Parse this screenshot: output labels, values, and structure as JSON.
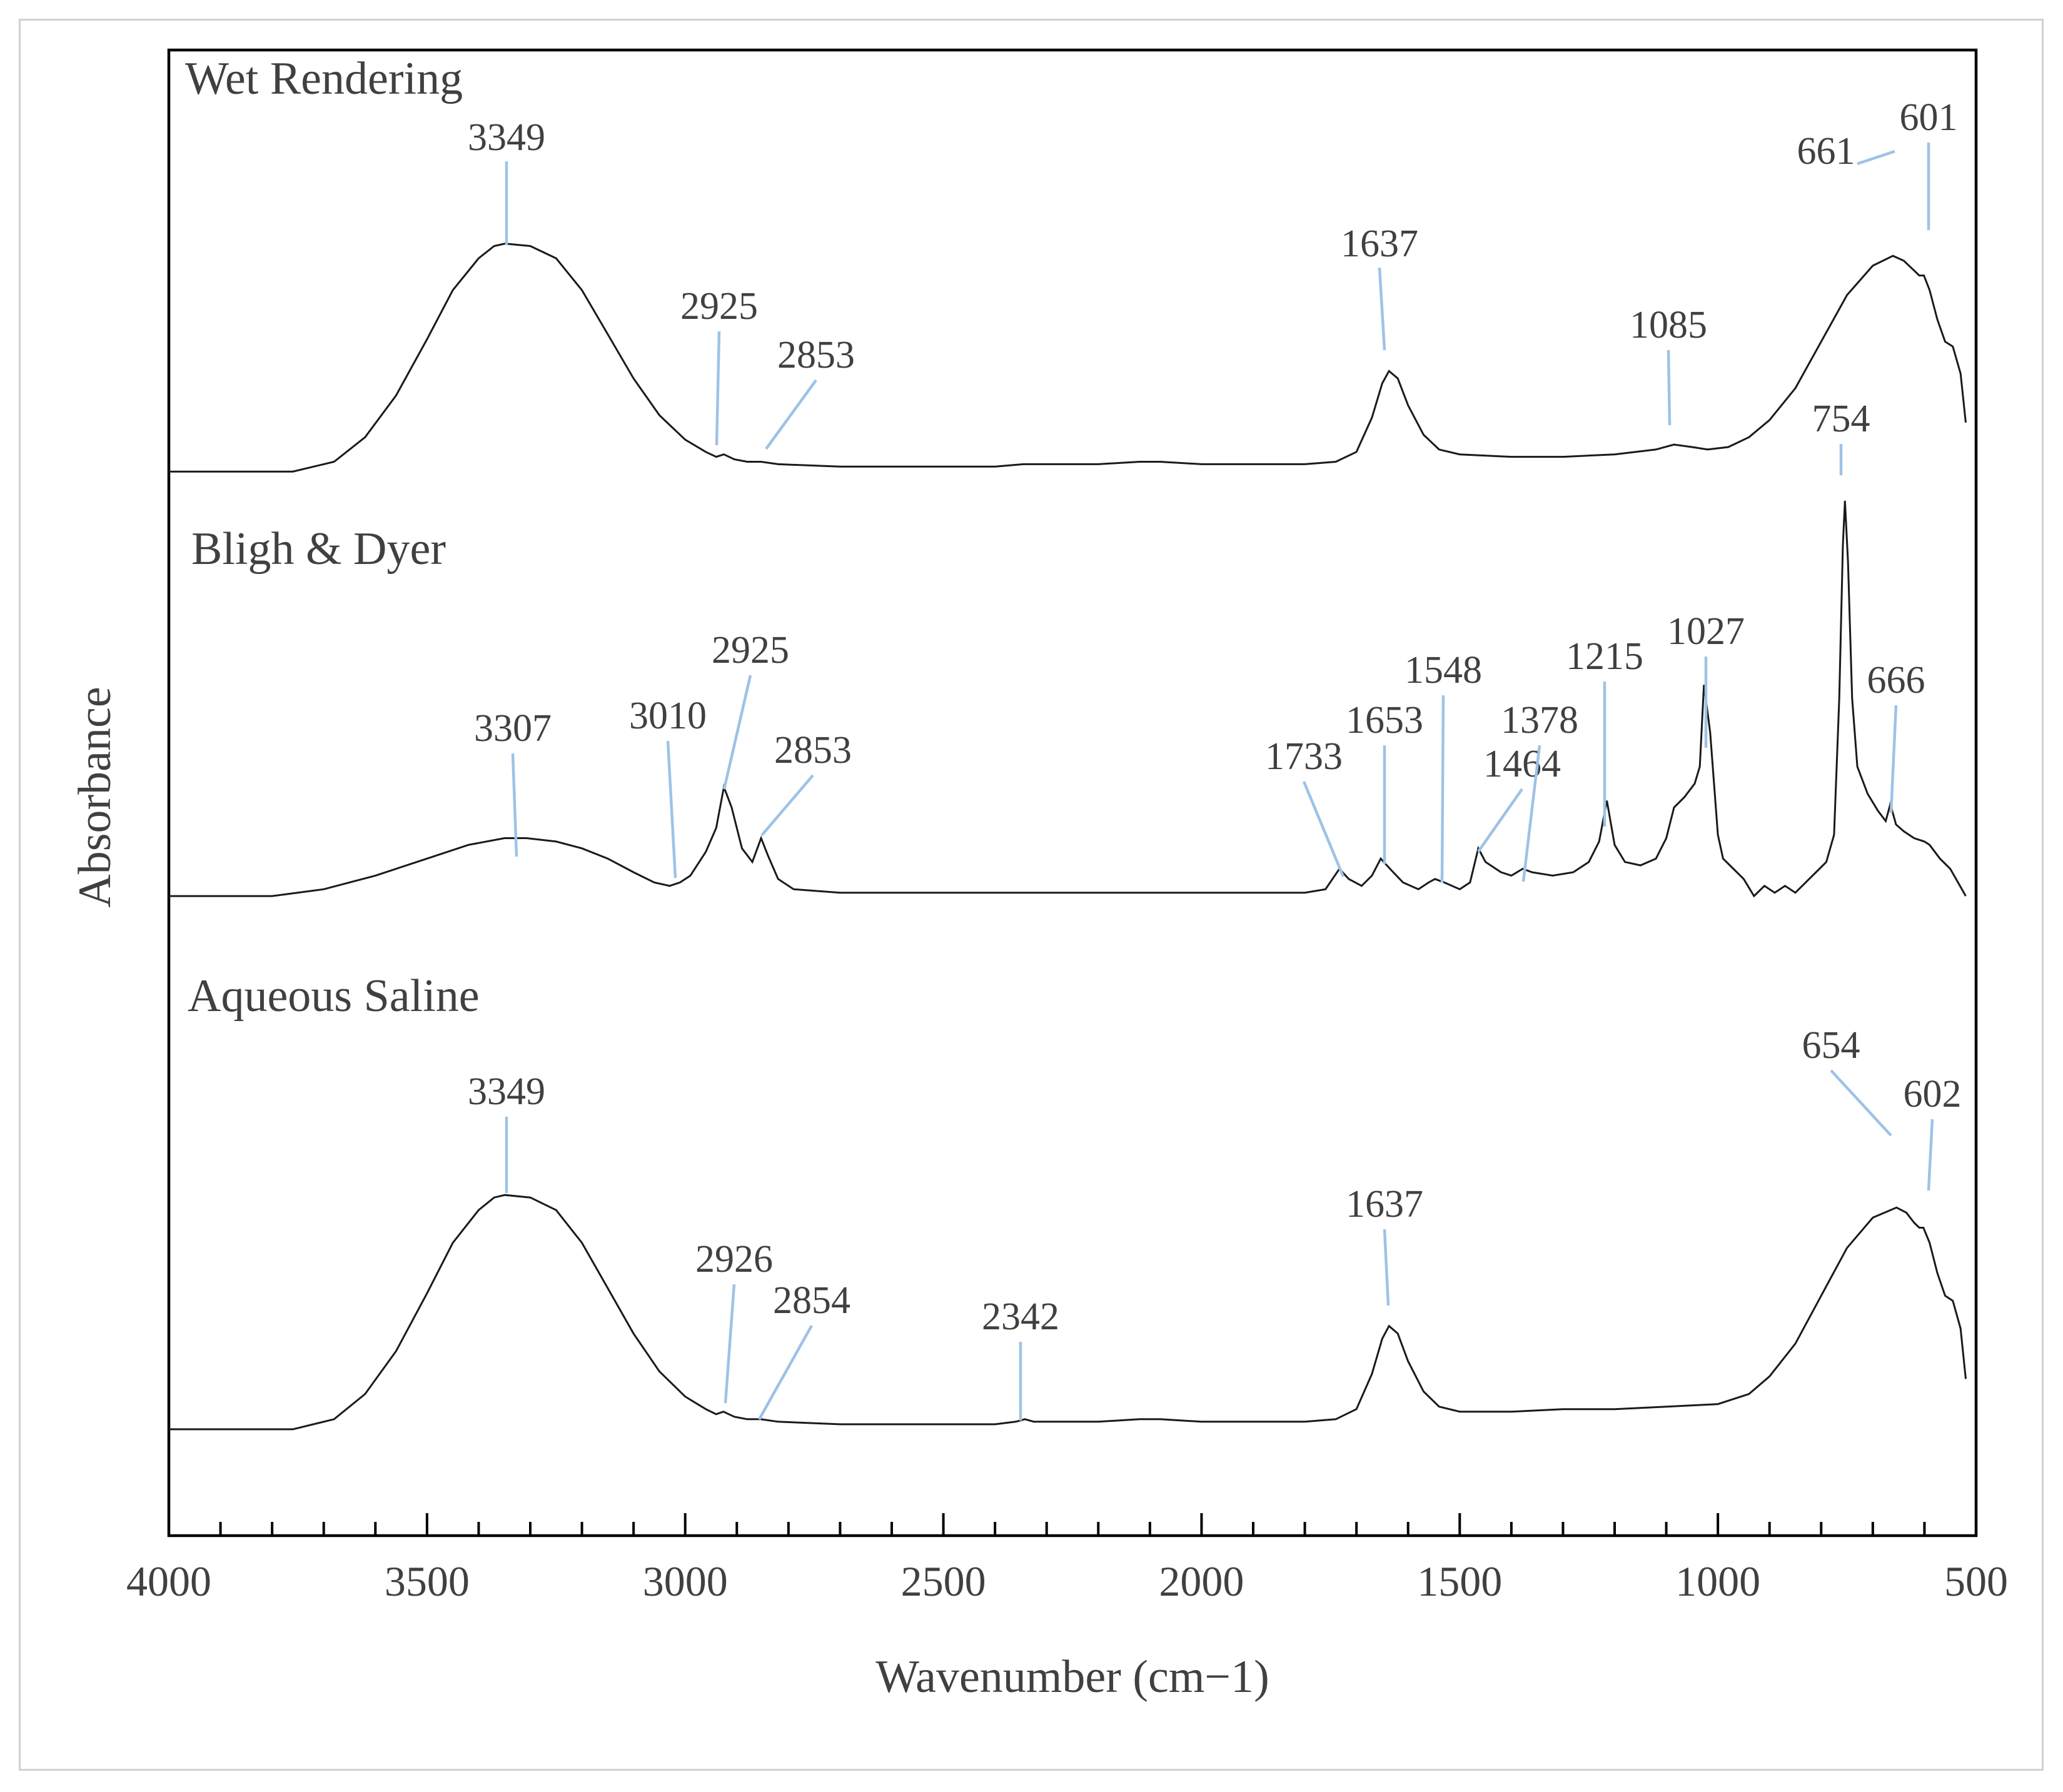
{
  "chart_data": {
    "type": "line",
    "title": "",
    "xlabel": "Wavenumber (cm−1)",
    "ylabel": "Absorbance",
    "xlim": [
      4000,
      500
    ],
    "x_reversed": true,
    "xticks": [
      4000,
      3500,
      3000,
      2500,
      2000,
      1500,
      1000,
      500
    ],
    "x_minor_step": 100,
    "y_ticks_shown": false,
    "grid": false,
    "legend": "none",
    "series": [
      {
        "name": "Wet Rendering",
        "points": [
          [
            4000,
            0.02
          ],
          [
            3760,
            0.02
          ],
          [
            3680,
            0.06
          ],
          [
            3620,
            0.16
          ],
          [
            3560,
            0.33
          ],
          [
            3500,
            0.56
          ],
          [
            3450,
            0.76
          ],
          [
            3400,
            0.89
          ],
          [
            3370,
            0.94
          ],
          [
            3349,
            0.95
          ],
          [
            3300,
            0.94
          ],
          [
            3250,
            0.89
          ],
          [
            3200,
            0.76
          ],
          [
            3150,
            0.58
          ],
          [
            3100,
            0.4
          ],
          [
            3050,
            0.25
          ],
          [
            3000,
            0.15
          ],
          [
            2960,
            0.1
          ],
          [
            2940,
            0.08
          ],
          [
            2925,
            0.09
          ],
          [
            2905,
            0.07
          ],
          [
            2880,
            0.06
          ],
          [
            2853,
            0.06
          ],
          [
            2820,
            0.05
          ],
          [
            2700,
            0.04
          ],
          [
            2500,
            0.04
          ],
          [
            2400,
            0.04
          ],
          [
            2345,
            0.05
          ],
          [
            2300,
            0.05
          ],
          [
            2200,
            0.05
          ],
          [
            2120,
            0.06
          ],
          [
            2080,
            0.06
          ],
          [
            2000,
            0.05
          ],
          [
            1800,
            0.05
          ],
          [
            1740,
            0.06
          ],
          [
            1700,
            0.1
          ],
          [
            1670,
            0.24
          ],
          [
            1650,
            0.38
          ],
          [
            1637,
            0.43
          ],
          [
            1620,
            0.4
          ],
          [
            1600,
            0.29
          ],
          [
            1570,
            0.17
          ],
          [
            1540,
            0.11
          ],
          [
            1500,
            0.09
          ],
          [
            1400,
            0.08
          ],
          [
            1300,
            0.08
          ],
          [
            1200,
            0.09
          ],
          [
            1120,
            0.11
          ],
          [
            1085,
            0.13
          ],
          [
            1050,
            0.12
          ],
          [
            1020,
            0.11
          ],
          [
            980,
            0.12
          ],
          [
            940,
            0.16
          ],
          [
            900,
            0.23
          ],
          [
            850,
            0.36
          ],
          [
            800,
            0.55
          ],
          [
            750,
            0.74
          ],
          [
            700,
            0.86
          ],
          [
            661,
            0.9
          ],
          [
            640,
            0.88
          ],
          [
            620,
            0.84
          ],
          [
            610,
            0.82
          ],
          [
            601,
            0.82
          ],
          [
            590,
            0.76
          ],
          [
            575,
            0.64
          ],
          [
            560,
            0.55
          ],
          [
            545,
            0.53
          ],
          [
            530,
            0.42
          ],
          [
            520,
            0.22
          ]
        ]
      },
      {
        "name": "Bligh  & Dyer",
        "points": [
          [
            4000,
            0.02
          ],
          [
            3800,
            0.02
          ],
          [
            3700,
            0.04
          ],
          [
            3600,
            0.08
          ],
          [
            3500,
            0.13
          ],
          [
            3420,
            0.17
          ],
          [
            3350,
            0.19
          ],
          [
            3307,
            0.19
          ],
          [
            3250,
            0.18
          ],
          [
            3200,
            0.16
          ],
          [
            3150,
            0.13
          ],
          [
            3100,
            0.09
          ],
          [
            3060,
            0.06
          ],
          [
            3030,
            0.05
          ],
          [
            3010,
            0.06
          ],
          [
            2990,
            0.08
          ],
          [
            2960,
            0.15
          ],
          [
            2940,
            0.22
          ],
          [
            2925,
            0.34
          ],
          [
            2910,
            0.28
          ],
          [
            2890,
            0.16
          ],
          [
            2870,
            0.12
          ],
          [
            2853,
            0.19
          ],
          [
            2840,
            0.14
          ],
          [
            2820,
            0.07
          ],
          [
            2790,
            0.04
          ],
          [
            2700,
            0.03
          ],
          [
            2500,
            0.03
          ],
          [
            2000,
            0.03
          ],
          [
            1800,
            0.03
          ],
          [
            1760,
            0.04
          ],
          [
            1733,
            0.1
          ],
          [
            1715,
            0.07
          ],
          [
            1690,
            0.05
          ],
          [
            1670,
            0.08
          ],
          [
            1653,
            0.13
          ],
          [
            1635,
            0.1
          ],
          [
            1610,
            0.06
          ],
          [
            1580,
            0.04
          ],
          [
            1560,
            0.06
          ],
          [
            1548,
            0.07
          ],
          [
            1530,
            0.06
          ],
          [
            1500,
            0.04
          ],
          [
            1480,
            0.06
          ],
          [
            1464,
            0.16
          ],
          [
            1450,
            0.12
          ],
          [
            1420,
            0.09
          ],
          [
            1400,
            0.08
          ],
          [
            1378,
            0.1
          ],
          [
            1360,
            0.09
          ],
          [
            1320,
            0.08
          ],
          [
            1280,
            0.09
          ],
          [
            1250,
            0.12
          ],
          [
            1230,
            0.18
          ],
          [
            1215,
            0.3
          ],
          [
            1200,
            0.17
          ],
          [
            1180,
            0.12
          ],
          [
            1150,
            0.11
          ],
          [
            1120,
            0.13
          ],
          [
            1100,
            0.19
          ],
          [
            1085,
            0.28
          ],
          [
            1065,
            0.31
          ],
          [
            1045,
            0.35
          ],
          [
            1035,
            0.4
          ],
          [
            1027,
            0.64
          ],
          [
            1015,
            0.5
          ],
          [
            1000,
            0.2
          ],
          [
            990,
            0.13
          ],
          [
            970,
            0.1
          ],
          [
            950,
            0.07
          ],
          [
            930,
            0.02
          ],
          [
            910,
            0.05
          ],
          [
            890,
            0.03
          ],
          [
            870,
            0.05
          ],
          [
            850,
            0.03
          ],
          [
            830,
            0.06
          ],
          [
            810,
            0.09
          ],
          [
            790,
            0.12
          ],
          [
            775,
            0.2
          ],
          [
            765,
            0.6
          ],
          [
            758,
            1.05
          ],
          [
            754,
            1.18
          ],
          [
            748,
            1.0
          ],
          [
            740,
            0.6
          ],
          [
            730,
            0.4
          ],
          [
            710,
            0.32
          ],
          [
            690,
            0.27
          ],
          [
            675,
            0.24
          ],
          [
            666,
            0.29
          ],
          [
            655,
            0.23
          ],
          [
            640,
            0.21
          ],
          [
            620,
            0.19
          ],
          [
            600,
            0.18
          ],
          [
            590,
            0.17
          ],
          [
            570,
            0.13
          ],
          [
            550,
            0.1
          ],
          [
            535,
            0.06
          ],
          [
            520,
            0.02
          ]
        ]
      },
      {
        "name": "Aqueous Saline",
        "points": [
          [
            4000,
            0.02
          ],
          [
            3760,
            0.02
          ],
          [
            3680,
            0.06
          ],
          [
            3620,
            0.16
          ],
          [
            3560,
            0.33
          ],
          [
            3500,
            0.56
          ],
          [
            3450,
            0.76
          ],
          [
            3400,
            0.89
          ],
          [
            3370,
            0.94
          ],
          [
            3349,
            0.95
          ],
          [
            3300,
            0.94
          ],
          [
            3250,
            0.89
          ],
          [
            3200,
            0.76
          ],
          [
            3150,
            0.58
          ],
          [
            3100,
            0.4
          ],
          [
            3050,
            0.25
          ],
          [
            3000,
            0.15
          ],
          [
            2960,
            0.1
          ],
          [
            2940,
            0.08
          ],
          [
            2926,
            0.09
          ],
          [
            2905,
            0.07
          ],
          [
            2880,
            0.06
          ],
          [
            2854,
            0.06
          ],
          [
            2820,
            0.05
          ],
          [
            2700,
            0.04
          ],
          [
            2500,
            0.04
          ],
          [
            2400,
            0.04
          ],
          [
            2360,
            0.05
          ],
          [
            2342,
            0.06
          ],
          [
            2325,
            0.05
          ],
          [
            2300,
            0.05
          ],
          [
            2200,
            0.05
          ],
          [
            2120,
            0.06
          ],
          [
            2080,
            0.06
          ],
          [
            2000,
            0.05
          ],
          [
            1800,
            0.05
          ],
          [
            1740,
            0.06
          ],
          [
            1700,
            0.1
          ],
          [
            1670,
            0.24
          ],
          [
            1650,
            0.38
          ],
          [
            1637,
            0.43
          ],
          [
            1620,
            0.4
          ],
          [
            1600,
            0.29
          ],
          [
            1570,
            0.17
          ],
          [
            1540,
            0.11
          ],
          [
            1500,
            0.09
          ],
          [
            1400,
            0.09
          ],
          [
            1300,
            0.1
          ],
          [
            1200,
            0.1
          ],
          [
            1100,
            0.11
          ],
          [
            1000,
            0.12
          ],
          [
            940,
            0.16
          ],
          [
            900,
            0.23
          ],
          [
            850,
            0.36
          ],
          [
            800,
            0.55
          ],
          [
            750,
            0.74
          ],
          [
            700,
            0.86
          ],
          [
            654,
            0.9
          ],
          [
            635,
            0.88
          ],
          [
            620,
            0.84
          ],
          [
            610,
            0.82
          ],
          [
            602,
            0.82
          ],
          [
            590,
            0.76
          ],
          [
            575,
            0.64
          ],
          [
            560,
            0.55
          ],
          [
            545,
            0.53
          ],
          [
            530,
            0.42
          ],
          [
            520,
            0.22
          ]
        ]
      }
    ],
    "annotations": [
      {
        "series": "Wet Rendering",
        "label": "3349",
        "x": 3349
      },
      {
        "series": "Wet Rendering",
        "label": "2925",
        "x": 2925
      },
      {
        "series": "Wet Rendering",
        "label": "2853",
        "x": 2853
      },
      {
        "series": "Wet Rendering",
        "label": "1637",
        "x": 1637
      },
      {
        "series": "Wet Rendering",
        "label": "1085",
        "x": 1085
      },
      {
        "series": "Wet Rendering",
        "label": "661",
        "x": 661
      },
      {
        "series": "Wet Rendering",
        "label": "601",
        "x": 601
      },
      {
        "series": "Bligh  & Dyer",
        "label": "3307",
        "x": 3307
      },
      {
        "series": "Bligh  & Dyer",
        "label": "3010",
        "x": 3010
      },
      {
        "series": "Bligh  & Dyer",
        "label": "2925",
        "x": 2925
      },
      {
        "series": "Bligh  & Dyer",
        "label": "2853",
        "x": 2853
      },
      {
        "series": "Bligh  & Dyer",
        "label": "1733",
        "x": 1733
      },
      {
        "series": "Bligh  & Dyer",
        "label": "1653",
        "x": 1653
      },
      {
        "series": "Bligh  & Dyer",
        "label": "1548",
        "x": 1548
      },
      {
        "series": "Bligh  & Dyer",
        "label": "1464",
        "x": 1464
      },
      {
        "series": "Bligh  & Dyer",
        "label": "1378",
        "x": 1378
      },
      {
        "series": "Bligh  & Dyer",
        "label": "1215",
        "x": 1215
      },
      {
        "series": "Bligh  & Dyer",
        "label": "1027",
        "x": 1027
      },
      {
        "series": "Bligh  & Dyer",
        "label": "754",
        "x": 754
      },
      {
        "series": "Bligh  & Dyer",
        "label": "666",
        "x": 666
      },
      {
        "series": "Aqueous Saline",
        "label": "3349",
        "x": 3349
      },
      {
        "series": "Aqueous Saline",
        "label": "2926",
        "x": 2926
      },
      {
        "series": "Aqueous Saline",
        "label": "2854",
        "x": 2854
      },
      {
        "series": "Aqueous Saline",
        "label": "2342",
        "x": 2342
      },
      {
        "series": "Aqueous Saline",
        "label": "1637",
        "x": 1637
      },
      {
        "series": "Aqueous Saline",
        "label": "654",
        "x": 654
      },
      {
        "series": "Aqueous Saline",
        "label": "602",
        "x": 602
      }
    ],
    "colors": {
      "trace": "#1a1a1a",
      "leader": "#9dc3e6",
      "axis": "#000000",
      "text": "#404040"
    }
  }
}
